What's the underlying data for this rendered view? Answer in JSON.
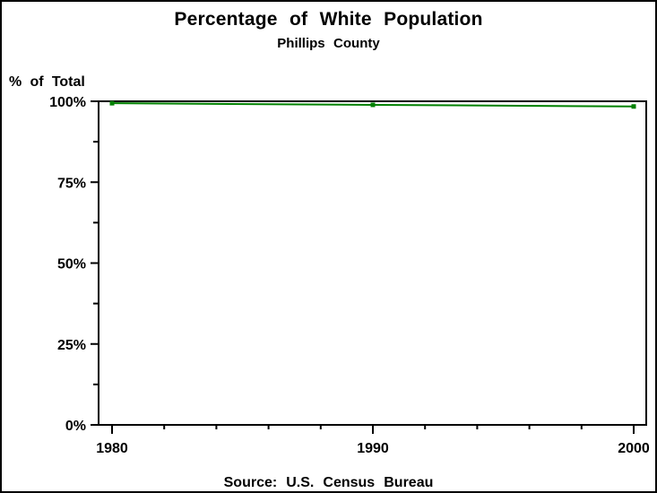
{
  "window": {
    "background": "#ffffff",
    "border_color": "#000000"
  },
  "header": {
    "title": "Percentage of White Population",
    "subtitle": "Phillips County"
  },
  "footer": {
    "source": "Source: U.S. Census Bureau"
  },
  "chart_data": {
    "type": "line",
    "title": "Percentage of White Population",
    "subtitle": "Phillips County",
    "xlabel": "",
    "ylabel": "% of Total",
    "x": [
      1980,
      1990,
      2000
    ],
    "series": [
      {
        "name": "white-population-percentage",
        "values": [
          99.4,
          98.9,
          98.4
        ],
        "color": "#008000",
        "marker": "square"
      }
    ],
    "xlim": [
      1980,
      2000
    ],
    "ylim": [
      0,
      100
    ],
    "yticks_major": [
      0,
      25,
      50,
      75,
      100
    ],
    "yticks_minor": [
      12.5,
      37.5,
      62.5,
      87.5
    ],
    "ytick_format": "{v}%",
    "xticks_major": [
      1980,
      1990,
      2000
    ],
    "xtick_minor_step": 2,
    "grid": false,
    "legend": "none",
    "frame": true,
    "source": "Source: U.S. Census Bureau"
  }
}
